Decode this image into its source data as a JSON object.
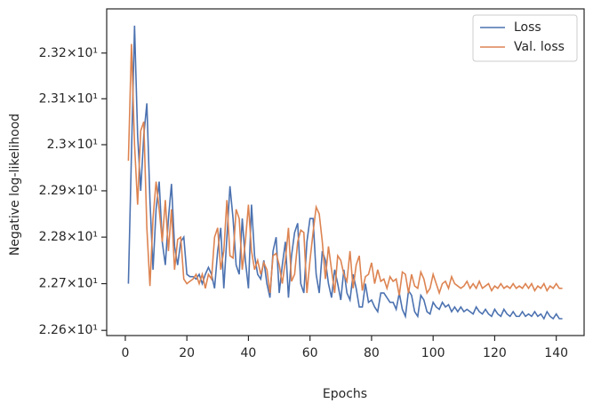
{
  "chart_data": {
    "type": "line",
    "xlabel": "Epochs",
    "ylabel": "Negative log-likelihood",
    "yscale": "log",
    "grid": false,
    "legend": "upper right",
    "xlim": [
      -6.05,
      149.05
    ],
    "xticks": [
      0,
      20,
      40,
      60,
      80,
      100,
      120,
      140
    ],
    "ylim": [
      22.589,
      23.297
    ],
    "yticks": [
      {
        "value": 22.6,
        "label": "2.26×10¹"
      },
      {
        "value": 22.7,
        "label": "2.27×10¹"
      },
      {
        "value": 22.8,
        "label": "2.28×10¹"
      },
      {
        "value": 22.9,
        "label": "2.29×10¹"
      },
      {
        "value": 23.0,
        "label": "2.3×10¹"
      },
      {
        "value": 23.1,
        "label": "2.31×10¹"
      },
      {
        "value": 23.2,
        "label": "2.32×10¹"
      }
    ],
    "x": [
      1,
      2,
      3,
      4,
      5,
      6,
      7,
      8,
      9,
      10,
      11,
      12,
      13,
      14,
      15,
      16,
      17,
      18,
      19,
      20,
      21,
      22,
      23,
      24,
      25,
      26,
      27,
      28,
      29,
      30,
      31,
      32,
      33,
      34,
      35,
      36,
      37,
      38,
      39,
      40,
      41,
      42,
      43,
      44,
      45,
      46,
      47,
      48,
      49,
      50,
      51,
      52,
      53,
      54,
      55,
      56,
      57,
      58,
      59,
      60,
      61,
      62,
      63,
      64,
      65,
      66,
      67,
      68,
      69,
      70,
      71,
      72,
      73,
      74,
      75,
      76,
      77,
      78,
      79,
      80,
      81,
      82,
      83,
      84,
      85,
      86,
      87,
      88,
      89,
      90,
      91,
      92,
      93,
      94,
      95,
      96,
      97,
      98,
      99,
      100,
      101,
      102,
      103,
      104,
      105,
      106,
      107,
      108,
      109,
      110,
      111,
      112,
      113,
      114,
      115,
      116,
      117,
      118,
      119,
      120,
      121,
      122,
      123,
      124,
      125,
      126,
      127,
      128,
      129,
      130,
      131,
      132,
      133,
      134,
      135,
      136,
      137,
      138,
      139,
      140,
      141,
      142
    ],
    "series": [
      {
        "name": "Loss",
        "color": "#4c72b0",
        "values": [
          22.7,
          22.98,
          23.26,
          23.02,
          22.9,
          23.02,
          23.09,
          22.88,
          22.73,
          22.86,
          22.92,
          22.79,
          22.74,
          22.84,
          22.915,
          22.78,
          22.74,
          22.79,
          22.8,
          22.72,
          22.715,
          22.715,
          22.71,
          22.72,
          22.7,
          22.72,
          22.735,
          22.72,
          22.69,
          22.77,
          22.82,
          22.69,
          22.8,
          22.91,
          22.84,
          22.74,
          22.72,
          22.84,
          22.75,
          22.69,
          22.87,
          22.76,
          22.72,
          22.71,
          22.75,
          22.7,
          22.67,
          22.77,
          22.8,
          22.68,
          22.74,
          22.79,
          22.67,
          22.76,
          22.81,
          22.83,
          22.7,
          22.68,
          22.79,
          22.84,
          22.84,
          22.72,
          22.68,
          22.77,
          22.75,
          22.7,
          22.67,
          22.73,
          22.7,
          22.665,
          22.73,
          22.68,
          22.665,
          22.72,
          22.69,
          22.65,
          22.65,
          22.7,
          22.66,
          22.665,
          22.65,
          22.64,
          22.68,
          22.68,
          22.67,
          22.66,
          22.66,
          22.645,
          22.68,
          22.645,
          22.63,
          22.685,
          22.675,
          22.64,
          22.63,
          22.675,
          22.665,
          22.64,
          22.635,
          22.66,
          22.65,
          22.645,
          22.66,
          22.65,
          22.655,
          22.64,
          22.65,
          22.64,
          22.65,
          22.64,
          22.645,
          22.64,
          22.635,
          22.65,
          22.64,
          22.635,
          22.645,
          22.635,
          22.63,
          22.645,
          22.635,
          22.63,
          22.645,
          22.635,
          22.63,
          22.64,
          22.63,
          22.63,
          22.64,
          22.63,
          22.635,
          22.63,
          22.64,
          22.63,
          22.635,
          22.625,
          22.64,
          22.63,
          22.625,
          22.635,
          22.625,
          22.625
        ]
      },
      {
        "name": "Val. loss",
        "color": "#dd8452",
        "values": [
          22.965,
          23.22,
          23.0,
          22.87,
          23.03,
          23.05,
          22.82,
          22.695,
          22.84,
          22.92,
          22.86,
          22.79,
          22.88,
          22.77,
          22.86,
          22.73,
          22.795,
          22.8,
          22.71,
          22.7,
          22.705,
          22.71,
          22.72,
          22.7,
          22.72,
          22.69,
          22.72,
          22.71,
          22.8,
          22.82,
          22.73,
          22.77,
          22.88,
          22.76,
          22.755,
          22.86,
          22.84,
          22.73,
          22.79,
          22.87,
          22.77,
          22.73,
          22.75,
          22.72,
          22.745,
          22.73,
          22.68,
          22.76,
          22.765,
          22.74,
          22.7,
          22.75,
          22.82,
          22.705,
          22.72,
          22.79,
          22.815,
          22.81,
          22.68,
          22.75,
          22.81,
          22.865,
          22.85,
          22.79,
          22.71,
          22.78,
          22.73,
          22.68,
          22.76,
          22.75,
          22.72,
          22.705,
          22.77,
          22.69,
          22.74,
          22.76,
          22.685,
          22.715,
          22.72,
          22.745,
          22.7,
          22.73,
          22.705,
          22.71,
          22.69,
          22.715,
          22.705,
          22.71,
          22.675,
          22.725,
          22.72,
          22.68,
          22.72,
          22.695,
          22.69,
          22.725,
          22.71,
          22.68,
          22.69,
          22.72,
          22.7,
          22.68,
          22.7,
          22.705,
          22.69,
          22.715,
          22.7,
          22.695,
          22.69,
          22.695,
          22.705,
          22.69,
          22.7,
          22.69,
          22.705,
          22.69,
          22.695,
          22.7,
          22.685,
          22.695,
          22.69,
          22.7,
          22.69,
          22.695,
          22.69,
          22.7,
          22.69,
          22.695,
          22.69,
          22.7,
          22.69,
          22.7,
          22.685,
          22.695,
          22.69,
          22.7,
          22.685,
          22.695,
          22.69,
          22.7,
          22.69,
          22.69
        ]
      }
    ]
  }
}
